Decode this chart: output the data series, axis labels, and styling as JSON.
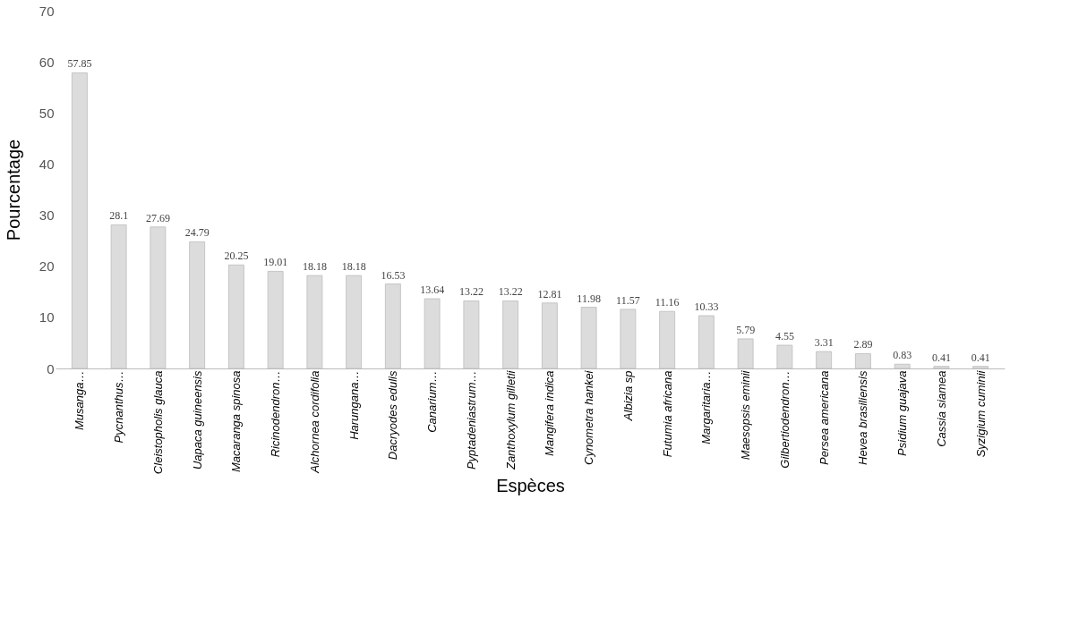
{
  "chart_data": {
    "type": "bar",
    "xlabel": "Espèces",
    "ylabel": "Pourcentage",
    "categories": [
      "Musanga…",
      "Pycnanthus…",
      "Cleistopholis glauca",
      "Uapaca guineensis",
      "Macaranga spinosa",
      "Ricinodendron…",
      "Alchornea cordifolia",
      "Harungana…",
      "Dacryodes edulis",
      "Canarium…",
      "Pyptadeniastrum…",
      "Zanthoxylum gilletii",
      "Mangifera indica",
      "Cynometra hankei",
      "Albizia sp",
      "Futumia africana",
      "Margaritaria…",
      "Maesopsis eminii",
      "Gilbertiodendron…",
      "Persea americana",
      "Hevea brasiliensis",
      "Psidium guajava",
      "Cassia siamea",
      "Syzigium cuminii"
    ],
    "values": [
      57.85,
      28.1,
      27.69,
      24.79,
      20.25,
      19.01,
      18.18,
      18.18,
      16.53,
      13.64,
      13.22,
      13.22,
      12.81,
      11.98,
      11.57,
      11.16,
      10.33,
      5.79,
      4.55,
      3.31,
      2.89,
      0.83,
      0.41,
      0.41
    ],
    "color": "#dcdcdc",
    "ylim": [
      0,
      70
    ],
    "yticks": [
      0,
      10,
      20,
      30,
      40,
      50,
      60,
      70
    ],
    "grid": false,
    "data_labels": true
  }
}
